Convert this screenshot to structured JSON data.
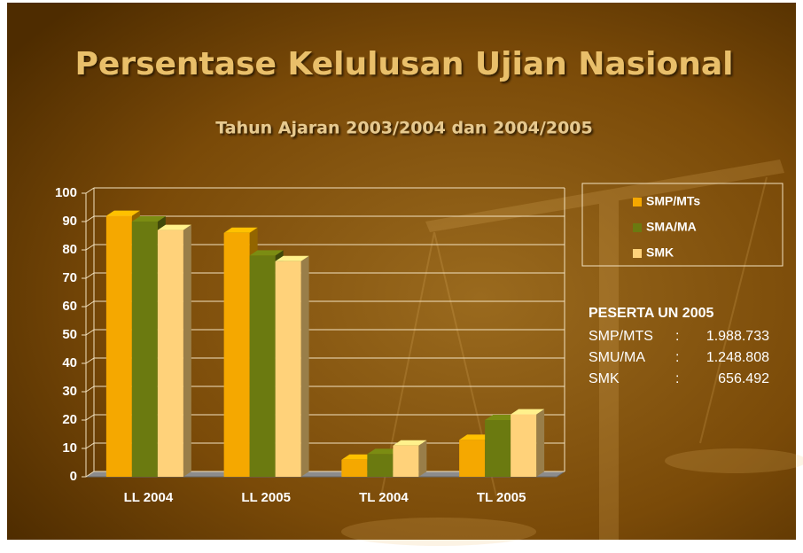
{
  "chart_data": {
    "type": "bar3d",
    "title": "Persentase Kelulusan Ujian Nasional",
    "subtitle": "Tahun Ajaran 2003/2004 dan 2004/2005",
    "categories": [
      "LL 2004",
      "LL 2005",
      "TL 2004",
      "TL 2005"
    ],
    "series": [
      {
        "name": "SMP/MTs",
        "color": "#f5a800",
        "values": [
          92,
          86,
          6,
          13
        ]
      },
      {
        "name": "SMA/MA",
        "color": "#6b7a10",
        "values": [
          90,
          78,
          8,
          20
        ]
      },
      {
        "name": "SMK",
        "color": "#ffd27a",
        "values": [
          87,
          76,
          11,
          22
        ]
      }
    ],
    "ylim": [
      0,
      100
    ],
    "yticks": [
      0,
      10,
      20,
      30,
      40,
      50,
      60,
      70,
      80,
      90,
      100
    ],
    "grid": true,
    "legend": "right",
    "annotation": {
      "title": "PESERTA UN 2005",
      "separator": ":",
      "rows": [
        {
          "label": "SMP/MTS",
          "value": "1.988.733"
        },
        {
          "label": "SMU/MA",
          "value": "1.248.808"
        },
        {
          "label": "SMK",
          "value": "656.492"
        }
      ]
    }
  }
}
